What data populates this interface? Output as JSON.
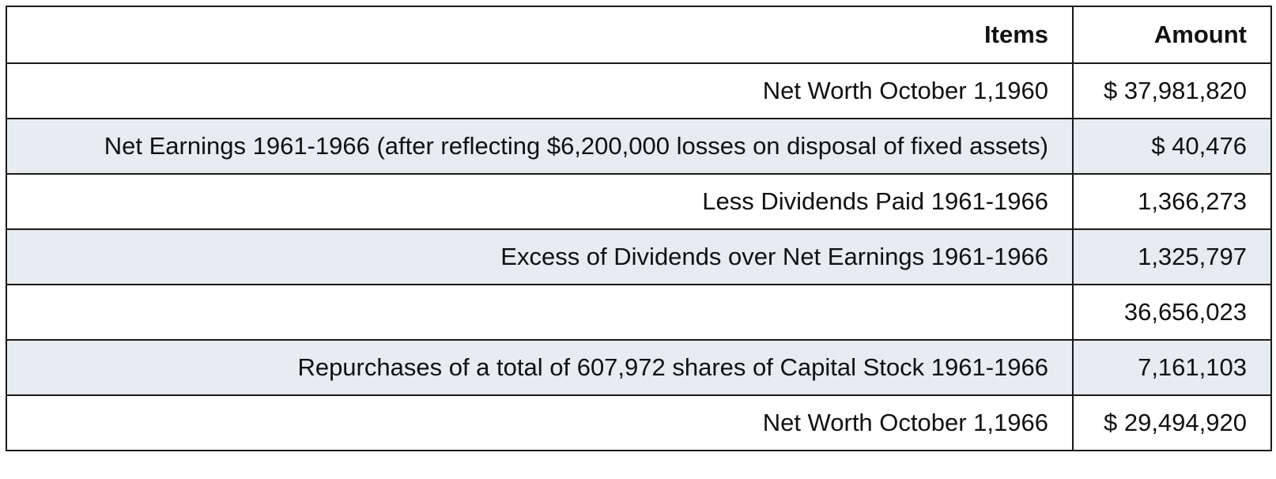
{
  "table": {
    "headers": [
      "Items",
      "Amount"
    ],
    "rows": [
      {
        "item": "Net Worth October 1,1960",
        "amount": "$ 37,981,820"
      },
      {
        "item": "Net Earnings 1961-1966 (after reflecting $6,200,000 losses on disposal of fixed assets)",
        "amount": "$ 40,476"
      },
      {
        "item": "Less Dividends Paid 1961-1966",
        "amount": "1,366,273"
      },
      {
        "item": "Excess of Dividends over Net Earnings 1961-1966",
        "amount": "1,325,797"
      },
      {
        "item": "",
        "amount": "36,656,023"
      },
      {
        "item": "Repurchases of a total of 607,972 shares of Capital Stock 1961-1966",
        "amount": "7,161,103"
      },
      {
        "item": "Net Worth October 1,1966",
        "amount": "$ 29,494,920"
      }
    ]
  }
}
